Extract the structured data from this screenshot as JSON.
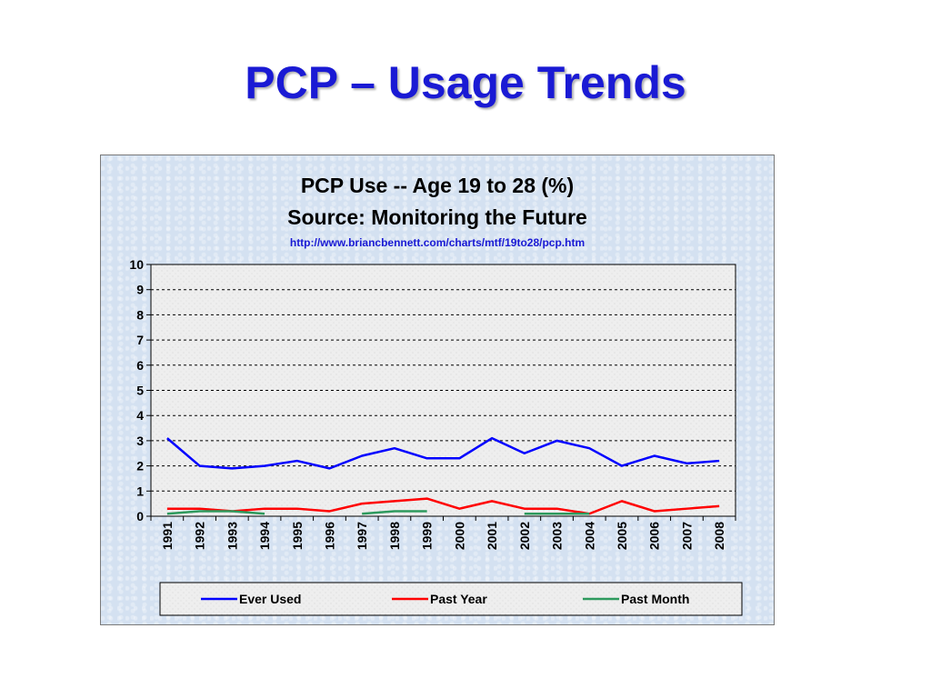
{
  "slide": {
    "title": "PCP – Usage Trends"
  },
  "chart_data": {
    "type": "line",
    "title": "PCP Use -- Age 19 to 28 (%)",
    "subtitle": "Source: Monitoring the Future",
    "source_url": "http://www.briancbennett.com/charts/mtf/19to28/pcp.htm",
    "xlabel": "",
    "ylabel": "",
    "ylim": [
      0,
      10
    ],
    "yticks": [
      "0",
      "1",
      "2",
      "3",
      "4",
      "5",
      "6",
      "7",
      "8",
      "9",
      "10"
    ],
    "categories": [
      "1991",
      "1992",
      "1993",
      "1994",
      "1995",
      "1996",
      "1997",
      "1998",
      "1999",
      "2000",
      "2001",
      "2002",
      "2003",
      "2004",
      "2005",
      "2006",
      "2007",
      "2008"
    ],
    "grid": "horizontal dashed",
    "legend_position": "bottom",
    "series": [
      {
        "name": "Ever Used",
        "color": "#0000ff",
        "values": [
          3.1,
          2.0,
          1.9,
          2.0,
          2.2,
          1.9,
          2.4,
          2.7,
          2.3,
          2.3,
          3.1,
          2.5,
          3.0,
          2.7,
          2.0,
          2.4,
          2.1,
          2.2
        ]
      },
      {
        "name": "Past Year",
        "color": "#ff0000",
        "values": [
          0.3,
          0.3,
          0.2,
          0.3,
          0.3,
          0.2,
          0.5,
          0.6,
          0.7,
          0.3,
          0.6,
          0.3,
          0.3,
          0.1,
          0.6,
          0.2,
          0.3,
          0.4
        ]
      },
      {
        "name": "Past Month",
        "color": "#2e9a5e",
        "values": [
          0.1,
          0.2,
          0.2,
          0.1,
          null,
          null,
          0.1,
          0.2,
          0.2,
          null,
          null,
          0.1,
          0.1,
          0.1,
          null,
          null,
          null,
          null
        ]
      }
    ]
  }
}
